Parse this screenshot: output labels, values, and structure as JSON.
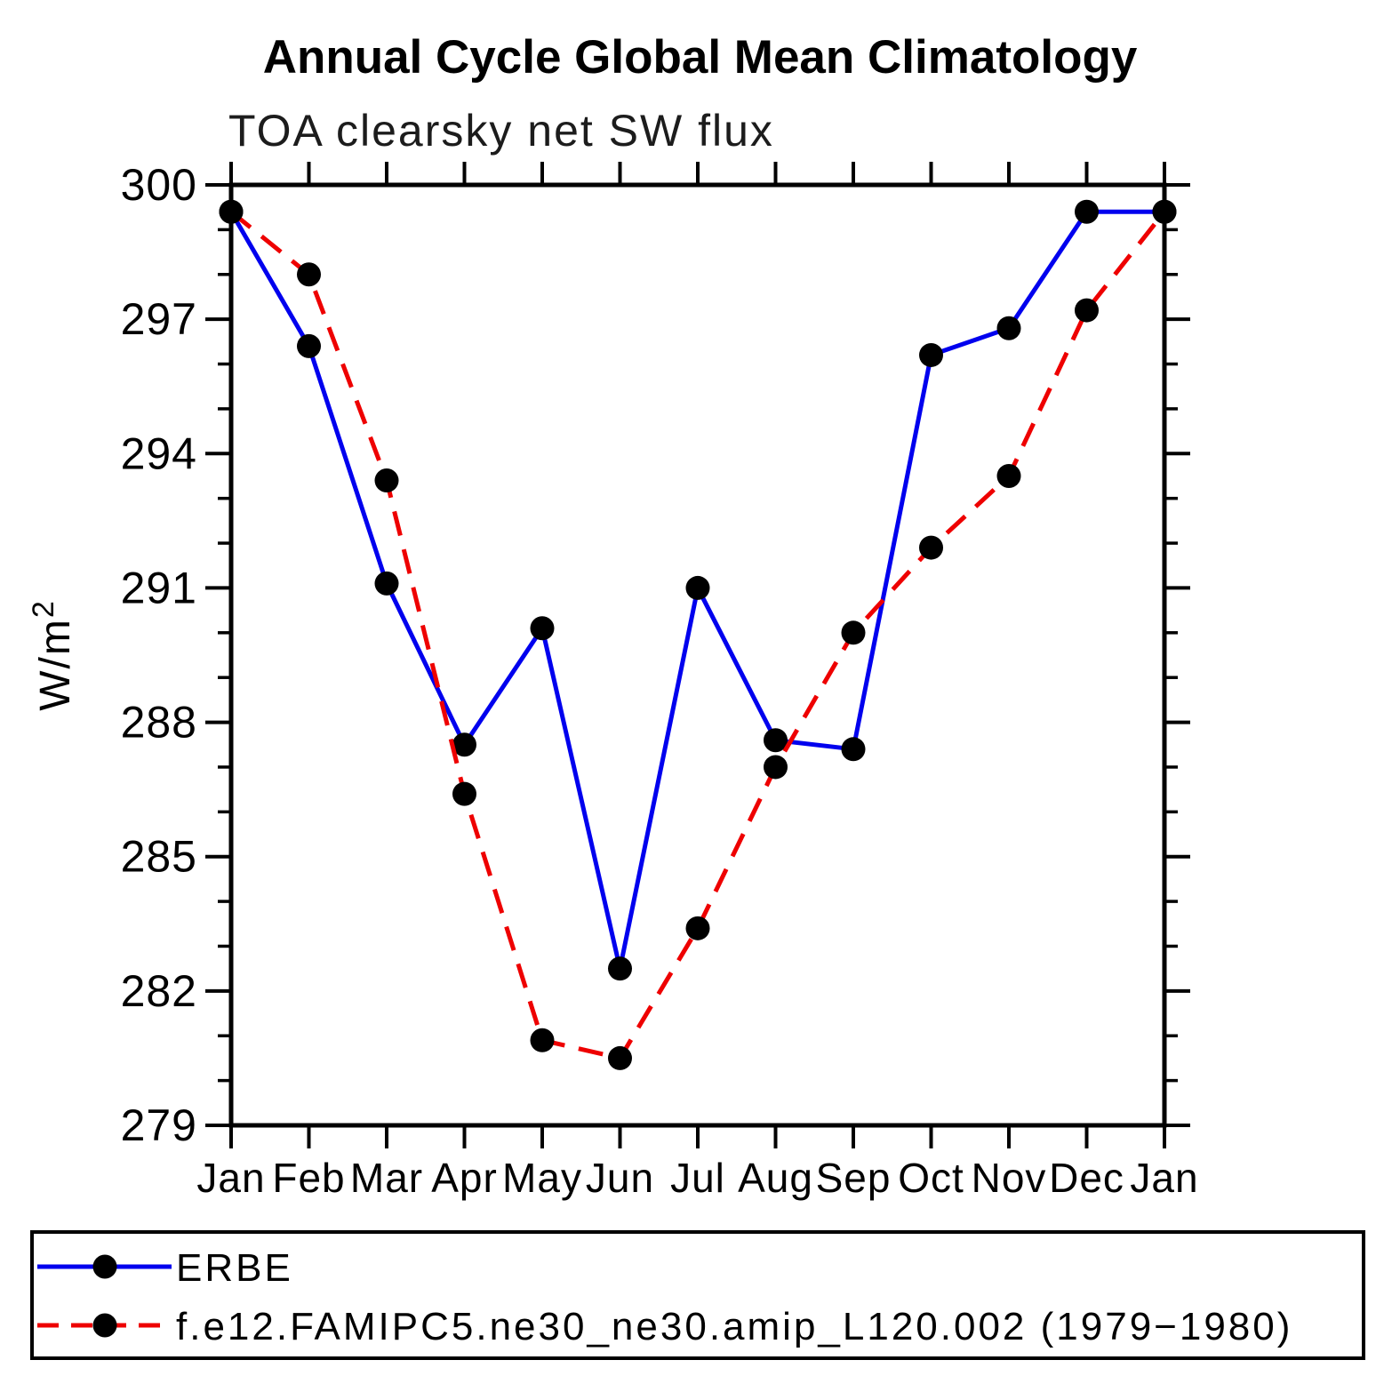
{
  "page": {
    "background": "#ffffff"
  },
  "chart_data": {
    "type": "line",
    "title": "Annual Cycle Global Mean Climatology",
    "subtitle": "TOA clearsky net SW flux",
    "ylabel": "W/m²",
    "xlabel": "",
    "x_categories": [
      "Jan",
      "Feb",
      "Mar",
      "Apr",
      "May",
      "Jun",
      "Jul",
      "Aug",
      "Sep",
      "Oct",
      "Nov",
      "Dec",
      "Jan"
    ],
    "ylim": [
      279,
      300
    ],
    "ytick_major_step": 3,
    "ytick_minor_step": 1,
    "ytick_labels": [
      "300",
      "297",
      "294",
      "291",
      "288",
      "285",
      "282",
      "279"
    ],
    "grid": false,
    "axis_color": "#000000",
    "marker_color": "#000000",
    "legend_position": "bottom-box",
    "series": [
      {
        "name": "ERBE",
        "color": "#0000ee",
        "line_style": "solid",
        "marker": "circle",
        "values": [
          299.4,
          296.4,
          291.1,
          287.5,
          290.1,
          282.5,
          291.0,
          287.6,
          287.4,
          296.2,
          296.8,
          299.4,
          299.4
        ]
      },
      {
        "name": "f.e12.FAMIPC5.ne30_ne30.amip_L120.002 (1979−1980)",
        "color": "#ee0000",
        "line_style": "dashed",
        "marker": "circle",
        "values": [
          299.4,
          298.0,
          293.4,
          286.4,
          280.9,
          280.5,
          283.4,
          287.0,
          290.0,
          291.9,
          293.5,
          297.2,
          299.4
        ]
      }
    ]
  }
}
